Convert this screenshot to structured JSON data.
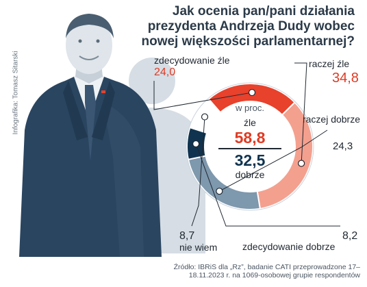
{
  "title": "Jak ocenia pan/pani działania prezydenta Andrzeja Dudy wobec nowej większości parlamentarnej?",
  "credit": "Infografika: Tomasz Sitarski",
  "source": "Źródło: IBRiS dla „Rz”, badanie CATI przeprowadzone 17–18.11.2023 r. na 1069-osobowej grupie respondentów",
  "colors": {
    "zdecydowanie_zle": "#e8412c",
    "raczej_zle": "#f4a08e",
    "raczej_dobrze": "#7e98ad",
    "zdecydowanie_dobrze": "#10344f",
    "nie_wiem": "#ffffff",
    "ring_border": "#c9d3dc",
    "negative_text": "#e03a23",
    "dark_text": "#1f2730"
  },
  "chart_data": {
    "type": "pie",
    "style": "donut",
    "unit_label": "w proc.",
    "slices": [
      {
        "label": "zdecydowanie źle",
        "value": 24.0,
        "display": "24,0"
      },
      {
        "label": "raczej źle",
        "value": 34.8,
        "display": "34,8"
      },
      {
        "label": "raczej dobrze",
        "value": 24.3,
        "display": "24,3"
      },
      {
        "label": "zdecydowanie dobrze",
        "value": 8.2,
        "display": "8,2"
      },
      {
        "label": "nie wiem",
        "value": 8.7,
        "display": "8,7"
      }
    ],
    "summary": {
      "negative_label": "źle",
      "negative_value": "58,8",
      "positive_label": "dobrze",
      "positive_value": "32,5"
    }
  }
}
